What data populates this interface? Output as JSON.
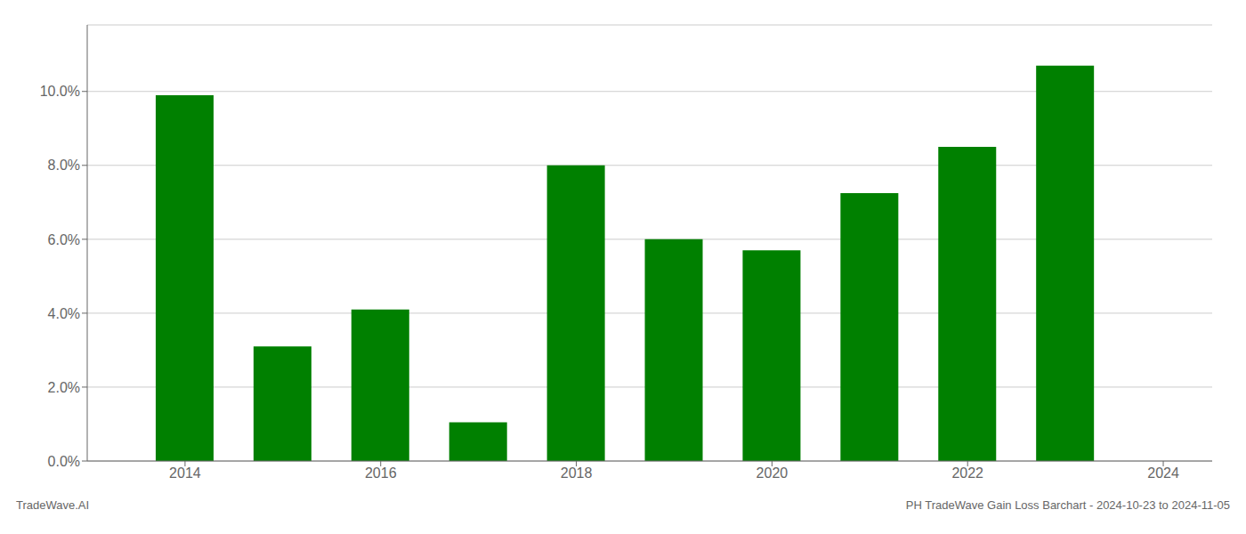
{
  "chart_data": {
    "type": "bar",
    "x": [
      2014,
      2015,
      2016,
      2017,
      2018,
      2019,
      2020,
      2021,
      2022,
      2023
    ],
    "values": [
      0.099,
      0.031,
      0.041,
      0.0105,
      0.08,
      0.06,
      0.057,
      0.0725,
      0.085,
      0.107
    ],
    "color": "#008000",
    "xlim": [
      2013.0,
      2024.5
    ],
    "xticks": [
      2014,
      2016,
      2018,
      2020,
      2022,
      2024
    ],
    "ylim": [
      0,
      0.118
    ],
    "yticks": [
      {
        "value": 0.0,
        "label": "0.0%"
      },
      {
        "value": 0.02,
        "label": "2.0%"
      },
      {
        "value": 0.04,
        "label": "4.0%"
      },
      {
        "value": 0.06,
        "label": "6.0%"
      },
      {
        "value": 0.08,
        "label": "8.0%"
      },
      {
        "value": 0.1,
        "label": "10.0%"
      }
    ],
    "grid": true,
    "annotations": [
      "TradeWave.AI",
      "PH TradeWave Gain Loss Barchart - 2024-10-23 to 2024-11-05"
    ]
  }
}
